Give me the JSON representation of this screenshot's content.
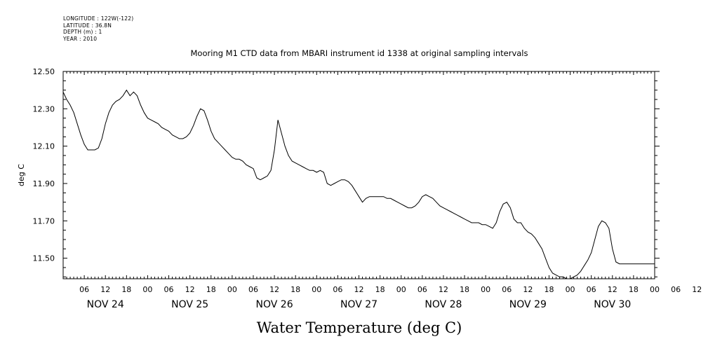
{
  "header": {
    "longitude": "LONGITUDE : 122W(-122)",
    "latitude": "LATITUDE : 36.8N",
    "depth": "DEPTH (m) : 1",
    "year": "YEAR : 2010"
  },
  "chart_data": {
    "type": "line",
    "title": "Mooring M1 CTD data from MBARI instrument id 1338 at original sampling intervals",
    "xlabel": "Water Temperature (deg C)",
    "ylabel": "deg C",
    "ylim": [
      11.39,
      12.5
    ],
    "xlim_hours": [
      0,
      168
    ],
    "y_ticks": [
      "12.50",
      "12.30",
      "12.10",
      "11.90",
      "11.70",
      "11.50"
    ],
    "hour_tick_labels": [
      "06",
      "12",
      "18",
      "00",
      "06",
      "12",
      "18",
      "00",
      "06",
      "12",
      "18",
      "00",
      "06",
      "12",
      "18",
      "00",
      "06",
      "12",
      "18",
      "00",
      "06",
      "12",
      "18",
      "00",
      "06",
      "12",
      "18",
      "00",
      "06",
      "12",
      "18",
      "00"
    ],
    "day_labels": [
      "NOV 24",
      "NOV 25",
      "NOV 26",
      "NOV 27",
      "NOV 28",
      "NOV 29",
      "NOV 30"
    ],
    "grid": false,
    "legend": "none",
    "line_color": "#000000",
    "series": [
      {
        "x": [
          0,
          1,
          2,
          3,
          4,
          5,
          6,
          7,
          8,
          9,
          10,
          11,
          12,
          13,
          14,
          15,
          16,
          17,
          18,
          19,
          20,
          21,
          22,
          23,
          24,
          25,
          26,
          27,
          28,
          29,
          30,
          31,
          32,
          33,
          34,
          35,
          36,
          37,
          38,
          39,
          40,
          41,
          42,
          43,
          44,
          45,
          46,
          47,
          48,
          49,
          50,
          51,
          52,
          53,
          54,
          55,
          56,
          57,
          58,
          59,
          60,
          61,
          62,
          63,
          64,
          65,
          66,
          67,
          68,
          69,
          70,
          71,
          72,
          73,
          74,
          75,
          76,
          77,
          78,
          79,
          80,
          81,
          82,
          83,
          84,
          85,
          86,
          87,
          88,
          89,
          90,
          91,
          92,
          93,
          94,
          95,
          96,
          97,
          98,
          99,
          100,
          101,
          102,
          103,
          104,
          105,
          106,
          107,
          108,
          109,
          110,
          111,
          112,
          113,
          114,
          115,
          116,
          117,
          118,
          119,
          120,
          121,
          122,
          123,
          124,
          125,
          126,
          127,
          128,
          129,
          130,
          131,
          132,
          133,
          134,
          135,
          136,
          137,
          138,
          139,
          140,
          141,
          142,
          143,
          144,
          145,
          146,
          147,
          148,
          149,
          150,
          151,
          152,
          153,
          154,
          155,
          156,
          157,
          158,
          159,
          160,
          161,
          162,
          163,
          164,
          165,
          166,
          167,
          168
        ],
        "values": [
          12.39,
          12.35,
          12.32,
          12.28,
          12.22,
          12.16,
          12.11,
          12.08,
          12.08,
          12.08,
          12.09,
          12.14,
          12.22,
          12.28,
          12.32,
          12.34,
          12.35,
          12.37,
          12.4,
          12.37,
          12.39,
          12.37,
          12.32,
          12.28,
          12.25,
          12.24,
          12.23,
          12.22,
          12.2,
          12.19,
          12.18,
          12.16,
          12.15,
          12.14,
          12.14,
          12.15,
          12.17,
          12.21,
          12.26,
          12.3,
          12.29,
          12.24,
          12.18,
          12.14,
          12.12,
          12.1,
          12.08,
          12.06,
          12.04,
          12.03,
          12.03,
          12.02,
          12.0,
          11.99,
          11.98,
          11.93,
          11.92,
          11.93,
          11.94,
          11.97,
          12.08,
          12.24,
          12.17,
          12.1,
          12.05,
          12.02,
          12.01,
          12.0,
          11.99,
          11.98,
          11.97,
          11.97,
          11.96,
          11.97,
          11.96,
          11.9,
          11.89,
          11.9,
          11.91,
          11.92,
          11.92,
          11.91,
          11.89,
          11.86,
          11.83,
          11.8,
          11.82,
          11.83,
          11.83,
          11.83,
          11.83,
          11.83,
          11.82,
          11.82,
          11.81,
          11.8,
          11.79,
          11.78,
          11.77,
          11.77,
          11.78,
          11.8,
          11.83,
          11.84,
          11.83,
          11.82,
          11.8,
          11.78,
          11.77,
          11.76,
          11.75,
          11.74,
          11.73,
          11.72,
          11.71,
          11.7,
          11.69,
          11.69,
          11.69,
          11.68,
          11.68,
          11.67,
          11.66,
          11.69,
          11.75,
          11.79,
          11.8,
          11.77,
          11.71,
          11.69,
          11.69,
          11.66,
          11.64,
          11.63,
          11.61,
          11.58,
          11.55,
          11.5,
          11.45,
          11.42,
          11.41,
          11.4,
          11.4,
          11.39,
          11.39,
          11.4,
          11.41,
          11.43,
          11.46,
          11.49,
          11.53,
          11.6,
          11.67,
          11.7,
          11.69,
          11.66,
          11.55,
          11.48,
          11.47,
          11.47,
          11.47,
          11.47,
          11.47,
          11.47,
          11.47,
          11.47,
          11.47,
          11.47,
          11.47
        ]
      }
    ]
  }
}
